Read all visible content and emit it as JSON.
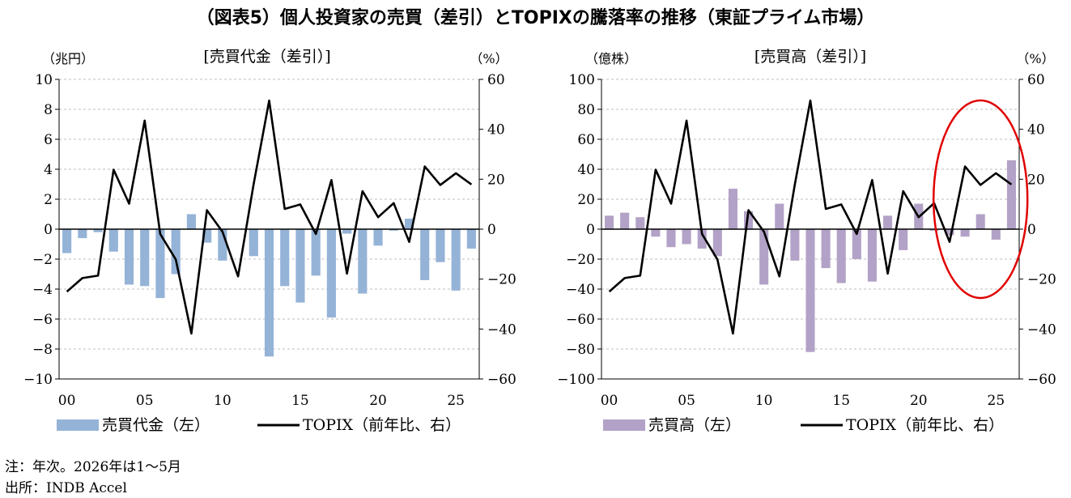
{
  "title": "（図表5）個人投資家の売買（差引）とTOPIXの騰落率の推移（東証プライム市場）",
  "notes": [
    "注：年次。2026年は1～5月",
    "出所：INDB Accel"
  ],
  "chart_data": [
    {
      "type": "bar",
      "title": "[売買代金（差引）]",
      "left_unit": "（兆円）",
      "right_unit": "（%）",
      "ylim_left": [
        -10,
        10
      ],
      "yticks_left": [
        -10,
        -8,
        -6,
        -4,
        -2,
        0,
        2,
        4,
        6,
        8,
        10
      ],
      "ylim_right": [
        -60,
        60
      ],
      "yticks_right": [
        -60,
        -40,
        -20,
        0,
        20,
        40,
        60
      ],
      "x": [
        2000,
        2001,
        2002,
        2003,
        2004,
        2005,
        2006,
        2007,
        2008,
        2009,
        2010,
        2011,
        2012,
        2013,
        2014,
        2015,
        2016,
        2017,
        2018,
        2019,
        2020,
        2021,
        2022,
        2023,
        2024,
        2025,
        2026
      ],
      "xtick_labels": [
        "00",
        "05",
        "10",
        "15",
        "20",
        "25"
      ],
      "xtick_positions": [
        2000,
        2005,
        2010,
        2015,
        2020,
        2025
      ],
      "bar_color": "#95b3d7",
      "line_color": "#000000",
      "series": [
        {
          "name": "売買代金（左）",
          "axis": "left",
          "kind": "bar",
          "values": [
            -1.6,
            -0.6,
            -0.2,
            -1.5,
            -3.7,
            -3.8,
            -4.6,
            -3.0,
            1.0,
            -0.9,
            -2.1,
            0.0,
            -1.8,
            -8.5,
            -3.8,
            -4.9,
            -3.1,
            -5.9,
            -0.3,
            -4.3,
            -1.1,
            -0.1,
            0.7,
            -3.4,
            -2.2,
            -4.1,
            -1.3
          ]
        },
        {
          "name": "TOPIX（前年比、右）",
          "axis": "right",
          "kind": "line",
          "values": [
            -25,
            -19.6,
            -18.6,
            23.8,
            10.2,
            43.5,
            -1.9,
            -12.2,
            -41.8,
            7.6,
            -1.0,
            -18.9,
            18.0,
            51.5,
            8.1,
            9.9,
            -1.9,
            19.7,
            -17.8,
            15.2,
            4.8,
            10.4,
            -5.1,
            25.1,
            17.7,
            22.4,
            17.9
          ]
        }
      ],
      "legend": [
        "売買代金（左）",
        "TOPIX（前年比、右）"
      ]
    },
    {
      "type": "bar",
      "title": "[売買高（差引）]",
      "left_unit": "（億株）",
      "right_unit": "（%）",
      "ylim_left": [
        -100,
        100
      ],
      "yticks_left": [
        -100,
        -80,
        -60,
        -40,
        -20,
        0,
        20,
        40,
        60,
        80,
        100
      ],
      "ylim_right": [
        -60,
        60
      ],
      "yticks_right": [
        -60,
        -40,
        -20,
        0,
        20,
        40,
        60
      ],
      "x": [
        2000,
        2001,
        2002,
        2003,
        2004,
        2005,
        2006,
        2007,
        2008,
        2009,
        2010,
        2011,
        2012,
        2013,
        2014,
        2015,
        2016,
        2017,
        2018,
        2019,
        2020,
        2021,
        2022,
        2023,
        2024,
        2025,
        2026
      ],
      "xtick_labels": [
        "00",
        "05",
        "10",
        "15",
        "20",
        "25"
      ],
      "xtick_positions": [
        2000,
        2005,
        2010,
        2015,
        2020,
        2025
      ],
      "bar_color": "#b3a2c7",
      "line_color": "#000000",
      "highlight_color": "#e00000",
      "series": [
        {
          "name": "売買高（左）",
          "axis": "left",
          "kind": "bar",
          "values": [
            9,
            11,
            8,
            -5,
            -12,
            -10,
            -13,
            -18,
            27,
            12,
            -37,
            17,
            -21,
            -82,
            -26,
            -36,
            -20,
            -35,
            9,
            -14,
            17,
            -1,
            -4,
            -5,
            10,
            -7,
            46
          ]
        },
        {
          "name": "TOPIX（前年比、右）",
          "axis": "right",
          "kind": "line",
          "values": [
            -25,
            -19.6,
            -18.6,
            23.8,
            10.2,
            43.5,
            -1.9,
            -12.2,
            -41.8,
            7.6,
            -1.0,
            -18.9,
            18.0,
            51.5,
            8.1,
            9.9,
            -1.9,
            19.7,
            -17.8,
            15.2,
            4.8,
            10.4,
            -5.1,
            25.1,
            17.7,
            22.4,
            17.9
          ]
        }
      ],
      "legend": [
        "売買高（左）",
        "TOPIX（前年比、右）"
      ]
    }
  ]
}
